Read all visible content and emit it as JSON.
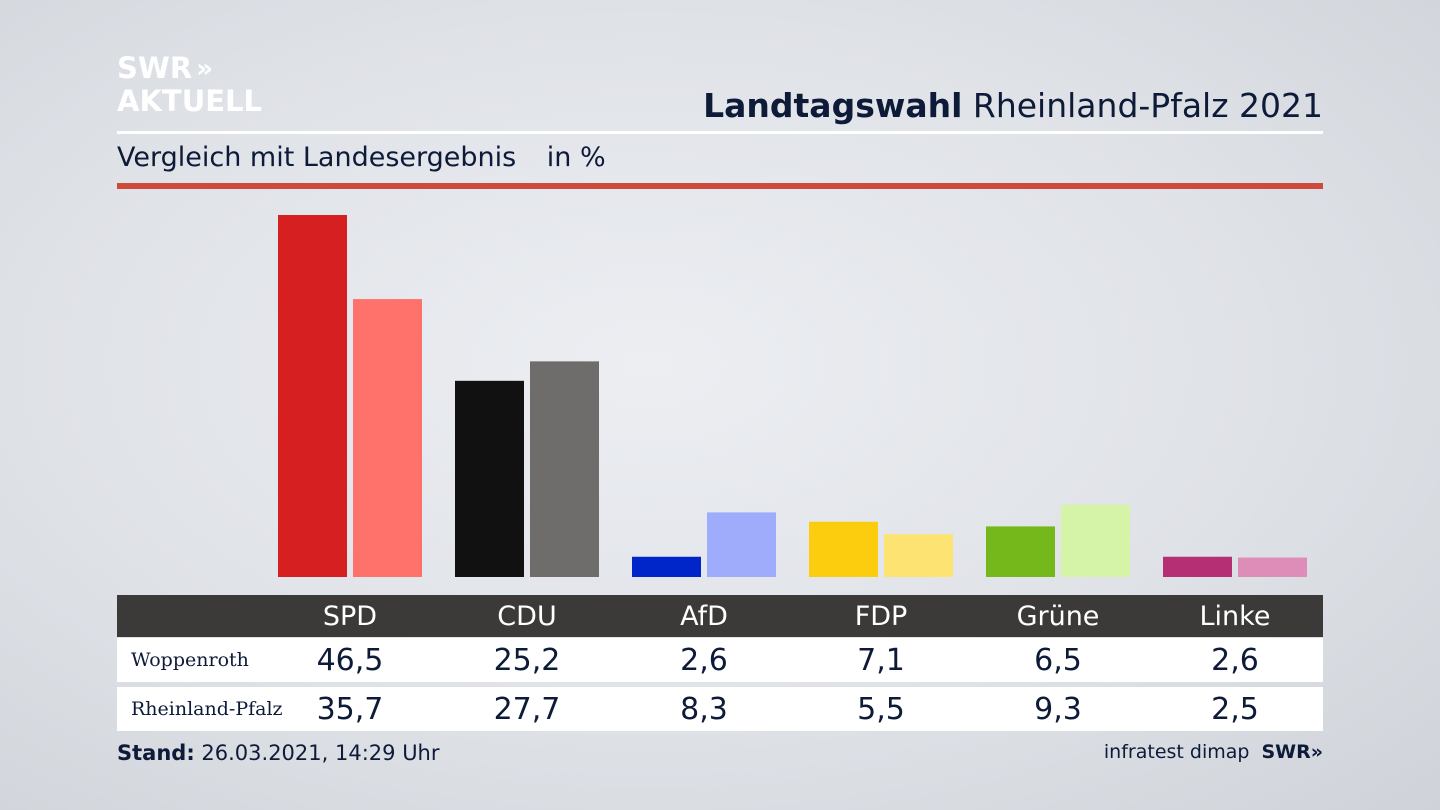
{
  "logo": {
    "line1": "SWR",
    "line2": "AKTUELL",
    "chevrons": "»"
  },
  "header": {
    "title_bold": "Landtagswahl",
    "title_rest": "Rheinland-Pfalz 2021",
    "subtitle": "Vergleich mit Landesergebnis",
    "unit": "in %"
  },
  "chart_data": {
    "type": "bar",
    "categories": [
      "SPD",
      "CDU",
      "AfD",
      "FDP",
      "Grüne",
      "Linke"
    ],
    "series": [
      {
        "name": "Woppenroth",
        "values": [
          46.5,
          25.2,
          2.6,
          7.1,
          6.5,
          2.6
        ]
      },
      {
        "name": "Rheinland-Pfalz",
        "values": [
          35.7,
          27.7,
          8.3,
          5.5,
          9.3,
          2.5
        ]
      }
    ],
    "colors": {
      "Woppenroth": [
        "#d61f20",
        "#111111",
        "#0026c9",
        "#fccc0f",
        "#74b81c",
        "#b52f74"
      ],
      "Rheinland-Pfalz": [
        "#ff726c",
        "#6f6d6c",
        "#9eacfb",
        "#fde472",
        "#d5f4a8",
        "#de8db9"
      ]
    },
    "ylim": [
      0,
      46.5
    ],
    "grid": false,
    "legend": "table-below"
  },
  "table": {
    "headers": [
      "SPD",
      "CDU",
      "AfD",
      "FDP",
      "Grüne",
      "Linke"
    ],
    "rows": [
      {
        "label": "Woppenroth",
        "values": [
          "46,5",
          "25,2",
          "2,6",
          "7,1",
          "6,5",
          "2,6"
        ]
      },
      {
        "label": "Rheinland-Pfalz",
        "values": [
          "35,7",
          "27,7",
          "8,3",
          "5,5",
          "9,3",
          "2,5"
        ]
      }
    ]
  },
  "footer": {
    "stand_label": "Stand:",
    "stand_value": "26.03.2021, 14:29 Uhr",
    "source": "infratest dimap",
    "brand": "SWR»"
  }
}
